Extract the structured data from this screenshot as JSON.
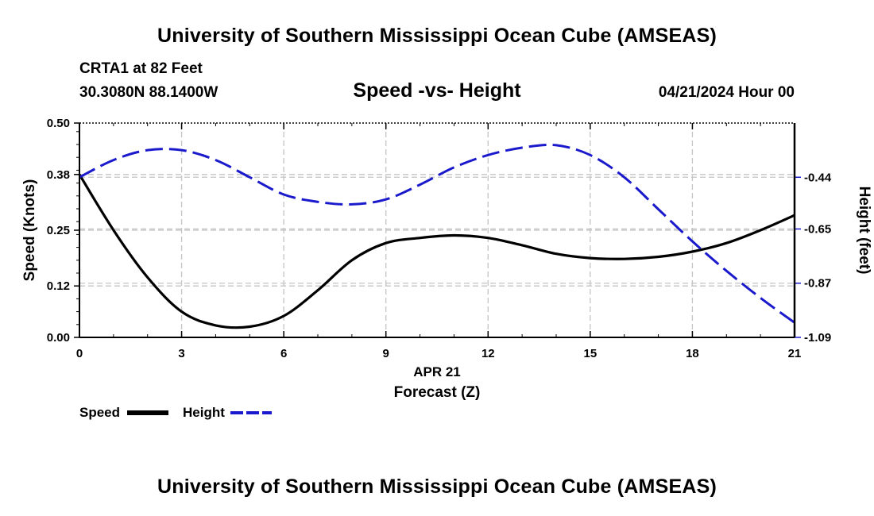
{
  "header": {
    "title": "University of Southern Mississippi Ocean Cube (AMSEAS)",
    "station": "CRTA1 at 82 Feet",
    "coords": "30.3080N  88.1400W",
    "subtitle": "Speed -vs- Height",
    "datetime": "04/21/2024 Hour 00"
  },
  "footer": {
    "title": "University of Southern Mississippi Ocean Cube (AMSEAS)"
  },
  "chart_data": {
    "type": "line",
    "title": "Speed -vs- Height",
    "date_label": "APR 21",
    "xlabel": "Forecast (Z)",
    "ylabel": "Speed (Knots)",
    "y2label": "Height (feet)",
    "xlim": [
      0,
      21
    ],
    "ylim": [
      0,
      0.5
    ],
    "y2lim": [
      -1.09,
      -0.22
    ],
    "xticks": [
      0,
      3,
      6,
      9,
      12,
      15,
      18,
      21
    ],
    "yticks": [
      0.0,
      0.12,
      0.25,
      0.38,
      0.5
    ],
    "ytick_labels": [
      "0.00",
      "0.12",
      "0.25",
      "0.38",
      "0.50"
    ],
    "y2ticks": [
      -0.44,
      -0.65,
      -0.87,
      -1.09
    ],
    "y2tick_labels": [
      "-0.44",
      "-0.65",
      "-0.87",
      "-1.09"
    ],
    "grid": true,
    "legend_position": "bottom-left",
    "x": [
      0,
      1,
      2,
      3,
      4,
      5,
      6,
      7,
      8,
      9,
      10,
      11,
      12,
      13,
      14,
      15,
      16,
      17,
      18,
      19,
      20,
      21
    ],
    "series": [
      {
        "name": "Speed",
        "axis": "left",
        "color": "#000000",
        "style": "solid",
        "values": [
          0.38,
          0.25,
          0.14,
          0.06,
          0.028,
          0.025,
          0.05,
          0.11,
          0.18,
          0.22,
          0.232,
          0.238,
          0.232,
          0.215,
          0.195,
          0.185,
          0.183,
          0.188,
          0.2,
          0.22,
          0.25,
          0.285
        ]
      },
      {
        "name": "Height",
        "axis": "right",
        "color": "#1a1acc",
        "style": "dashed",
        "values": [
          -0.44,
          -0.37,
          -0.33,
          -0.33,
          -0.37,
          -0.44,
          -0.51,
          -0.54,
          -0.55,
          -0.53,
          -0.47,
          -0.4,
          -0.35,
          -0.32,
          -0.31,
          -0.35,
          -0.44,
          -0.57,
          -0.7,
          -0.82,
          -0.93,
          -1.03
        ]
      }
    ]
  }
}
